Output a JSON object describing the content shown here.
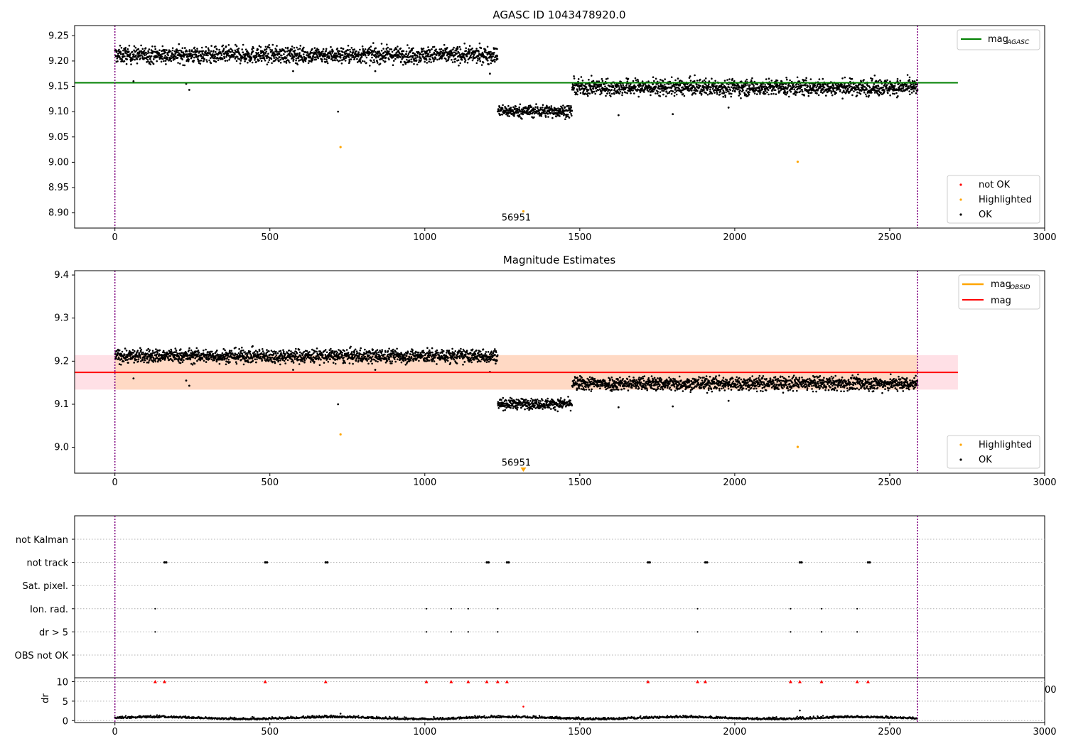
{
  "colors": {
    "ok": "#000000",
    "not_ok": "#ff0000",
    "highlighted": "#ffa500",
    "mag_agasc_line": "#008000",
    "mag_obsid_line": "#ffa500",
    "mag_line": "#ff0000",
    "band_red": "#ffe0e6",
    "band_orange": "#ffd9c4",
    "obsid_vline": "#800080",
    "grid": "#b0b0b0"
  },
  "chart_data": [
    {
      "type": "scatter",
      "title": "AGASC ID 1043478920.0",
      "xlim": [
        -130,
        3000
      ],
      "ylim": [
        8.87,
        9.27
      ],
      "xticks": [
        "0",
        "500",
        "1000",
        "1500",
        "2000",
        "2500",
        "3000"
      ],
      "yticks": [
        "8.90",
        "8.95",
        "9.00",
        "9.05",
        "9.10",
        "9.15",
        "9.20",
        "9.25"
      ],
      "obsid_boundaries": [
        0,
        2590
      ],
      "annotation": {
        "text": "56951",
        "x": 1295,
        "y": 8.885
      },
      "mag_agasc": 9.157,
      "segments": [
        {
          "x_start": 0,
          "x_end": 1235,
          "mean": 9.212,
          "spread": 0.008
        },
        {
          "x_start": 1235,
          "x_end": 1475,
          "mean": 9.101,
          "spread": 0.006
        },
        {
          "x_start": 1475,
          "x_end": 2590,
          "mean": 9.148,
          "spread": 0.008
        }
      ],
      "outliers_ok": [
        [
          60,
          9.16
        ],
        [
          230,
          9.155
        ],
        [
          240,
          9.143
        ],
        [
          720,
          9.1
        ],
        [
          1625,
          9.093
        ],
        [
          1800,
          9.095
        ],
        [
          1980,
          9.108
        ],
        [
          1210,
          9.175
        ],
        [
          575,
          9.18
        ],
        [
          840,
          9.18
        ]
      ],
      "highlighted": [
        [
          728,
          9.03
        ],
        [
          2203,
          9.001
        ],
        [
          1318,
          8.903
        ]
      ],
      "legend_lines": [
        {
          "label": "mag",
          "sub": "AGASC"
        }
      ],
      "legend_points": [
        "not OK",
        "Highlighted",
        "OK"
      ]
    },
    {
      "type": "scatter",
      "title": "Magnitude Estimates",
      "xlim": [
        -130,
        3000
      ],
      "ylim": [
        8.94,
        9.41
      ],
      "xticks": [
        "0",
        "500",
        "1000",
        "1500",
        "2000",
        "2500",
        "3000"
      ],
      "yticks": [
        "9.0",
        "9.1",
        "9.2",
        "9.3",
        "9.4"
      ],
      "obsid_boundaries": [
        0,
        2590
      ],
      "annotation": {
        "text": "56951",
        "x": 1295,
        "y": 8.957
      },
      "mag": 9.174,
      "band_red": [
        9.134,
        9.214
      ],
      "band_orange": [
        9.134,
        9.214
      ],
      "segments": [
        {
          "x_start": 0,
          "x_end": 1235,
          "mean": 9.212,
          "spread": 0.008
        },
        {
          "x_start": 1235,
          "x_end": 1475,
          "mean": 9.101,
          "spread": 0.006
        },
        {
          "x_start": 1475,
          "x_end": 2590,
          "mean": 9.148,
          "spread": 0.008
        }
      ],
      "outliers_ok": [
        [
          60,
          9.16
        ],
        [
          230,
          9.155
        ],
        [
          240,
          9.143
        ],
        [
          720,
          9.1
        ],
        [
          1625,
          9.093
        ],
        [
          1800,
          9.095
        ],
        [
          1980,
          9.108
        ],
        [
          1210,
          9.175
        ],
        [
          575,
          9.18
        ],
        [
          840,
          9.18
        ]
      ],
      "highlighted": [
        [
          728,
          9.03
        ],
        [
          2203,
          9.001
        ]
      ],
      "marker_triangle": [
        1318,
        8.94
      ],
      "legend_lines": [
        {
          "label": "mag",
          "sub": "OBSID"
        },
        {
          "label": "mag",
          "sub": ""
        }
      ],
      "legend_points": [
        "Highlighted",
        "OK"
      ]
    },
    {
      "type": "scatter",
      "title": "",
      "xlim": [
        -130,
        3000
      ],
      "categories": [
        "not Kalman",
        "not track",
        "Sat. pixel.",
        "Ion. rad.",
        "dr > 5",
        "OBS not OK"
      ],
      "obsid_boundaries": [
        0,
        2590
      ],
      "flags": {
        "not track": [
          160,
          485,
          680,
          1200,
          1265,
          1720,
          1905,
          2210,
          2430
        ],
        "Ion. rad.": [
          130,
          1005,
          1085,
          1140,
          1235,
          1880,
          2180,
          2280,
          2395
        ],
        "dr > 5": [
          130,
          1005,
          1085,
          1140,
          1235,
          1880,
          2180,
          2280,
          2395
        ]
      }
    },
    {
      "type": "scatter",
      "title": "",
      "ylabel": "dr",
      "xlim": [
        -130,
        3000
      ],
      "ylim": [
        -0.5,
        11
      ],
      "xticks": [
        "0",
        "500",
        "1000",
        "1500",
        "2000",
        "2500",
        "3000"
      ],
      "yticks": [
        "0",
        "5",
        "10"
      ],
      "obsid_boundaries": [
        0,
        2590
      ],
      "dr_baseline": 0.5,
      "clipped_at_10": [
        130,
        160,
        485,
        680,
        1005,
        1085,
        1140,
        1200,
        1235,
        1265,
        1720,
        1880,
        1905,
        2180,
        2210,
        2280,
        2395,
        2430
      ],
      "outliers": [
        [
          728,
          1.8
        ],
        [
          1318,
          3.6
        ],
        [
          2210,
          2.6
        ]
      ],
      "stray_tick": "00"
    }
  ]
}
